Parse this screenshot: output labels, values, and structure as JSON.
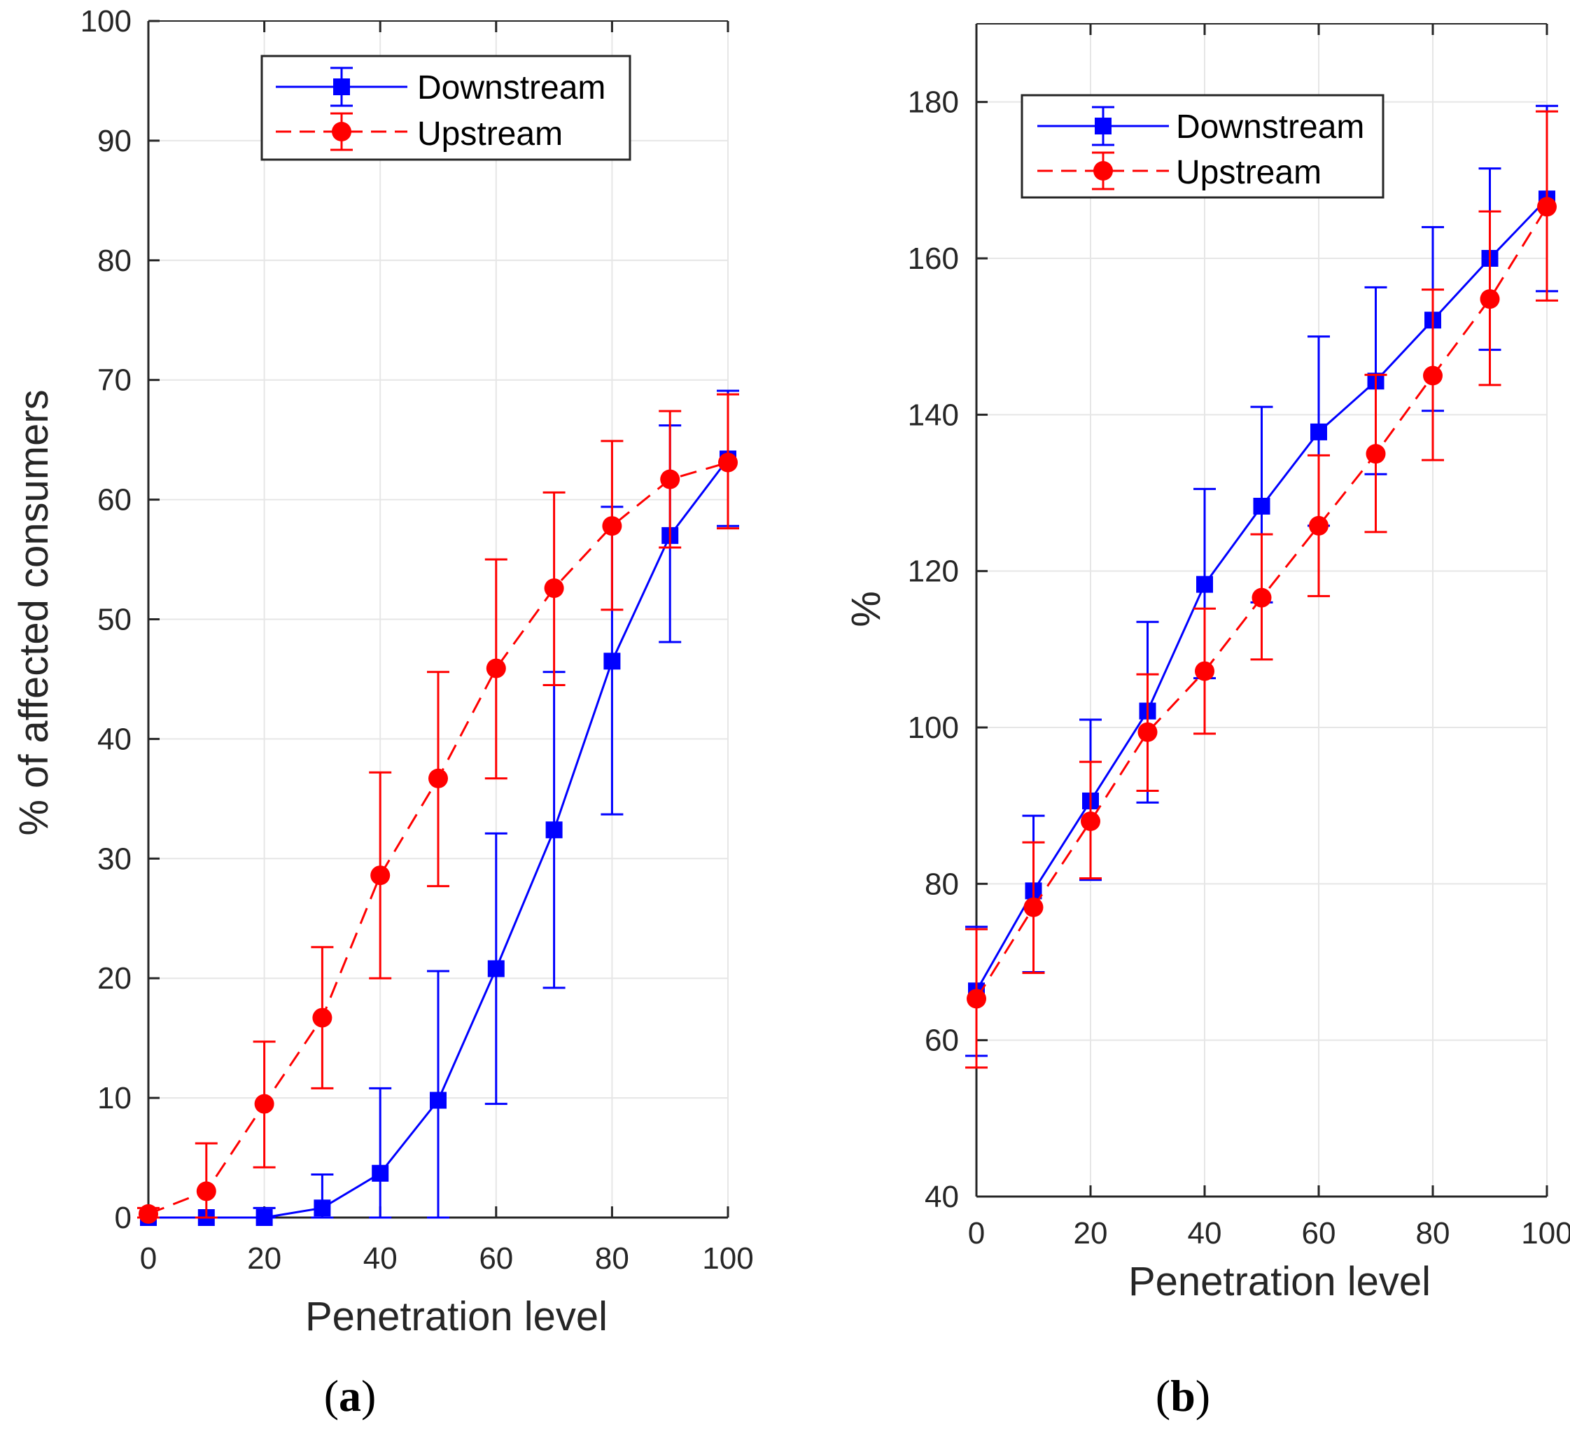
{
  "figure": {
    "panel_labels": {
      "a_open": "(",
      "a": "a",
      "a_close": ")",
      "b_open": "(",
      "b": "b",
      "b_close": ")"
    }
  },
  "colors": {
    "downstream": "#0000ff",
    "upstream": "#ff0000",
    "grid": "#e6e6e6",
    "axis": "#262626"
  },
  "chart_data": [
    {
      "type": "line",
      "panel": "a",
      "title": "",
      "xlabel": "Penetration level",
      "ylabel": "% of affected consumers",
      "xlim": [
        0,
        100
      ],
      "ylim": [
        0,
        100
      ],
      "xticks": [
        0,
        20,
        40,
        60,
        80,
        100
      ],
      "yticks": [
        0,
        10,
        20,
        30,
        40,
        50,
        60,
        70,
        80,
        90,
        100
      ],
      "grid": true,
      "legend_position": "top-left",
      "x": [
        0,
        10,
        20,
        30,
        40,
        50,
        60,
        70,
        80,
        90,
        100
      ],
      "series": [
        {
          "name": "Downstream",
          "style": "solid",
          "marker": "square",
          "values": [
            0,
            0,
            0,
            0.8,
            3.7,
            9.8,
            20.8,
            32.4,
            46.5,
            57.0,
            63.4
          ],
          "err_low": [
            0,
            0,
            0,
            0,
            0,
            0,
            9.5,
            19.2,
            33.7,
            48.1,
            57.8
          ],
          "err_high": [
            0,
            0,
            0.8,
            3.6,
            10.8,
            20.6,
            32.1,
            45.6,
            59.4,
            66.2,
            69.1
          ]
        },
        {
          "name": "Upstream",
          "style": "dashed",
          "marker": "circle",
          "values": [
            0.3,
            2.2,
            9.5,
            16.7,
            28.6,
            36.7,
            45.9,
            52.6,
            57.8,
            61.7,
            63.1
          ],
          "err_low": [
            0,
            0,
            4.2,
            10.8,
            20.0,
            27.7,
            36.7,
            44.5,
            50.8,
            56.0,
            57.6
          ],
          "err_high": [
            0.8,
            6.2,
            14.7,
            22.6,
            37.2,
            45.6,
            55.0,
            60.6,
            64.9,
            67.4,
            68.8
          ]
        }
      ]
    },
    {
      "type": "line",
      "panel": "b",
      "title": "",
      "xlabel": "Penetration level",
      "ylabel": "%",
      "xlim": [
        0,
        100
      ],
      "ylim": [
        40,
        190
      ],
      "xticks": [
        0,
        20,
        40,
        60,
        80,
        100
      ],
      "yticks": [
        40,
        60,
        80,
        100,
        120,
        140,
        160,
        180
      ],
      "grid": true,
      "legend_position": "top-left",
      "x": [
        0,
        10,
        20,
        30,
        40,
        50,
        60,
        70,
        80,
        90,
        100
      ],
      "series": [
        {
          "name": "Downstream",
          "style": "solid",
          "marker": "square",
          "values": [
            66.3,
            79.1,
            90.6,
            102.1,
            118.3,
            128.3,
            137.8,
            144.3,
            152.1,
            160.0,
            167.6
          ],
          "err_low": [
            58.0,
            68.7,
            80.5,
            90.4,
            106.3,
            116.0,
            125.8,
            132.4,
            140.5,
            148.3,
            155.8
          ],
          "err_high": [
            74.5,
            88.7,
            101.0,
            113.5,
            130.5,
            141.0,
            150.0,
            156.3,
            164.0,
            171.5,
            179.5
          ]
        },
        {
          "name": "Upstream",
          "style": "dashed",
          "marker": "circle",
          "values": [
            65.3,
            77.0,
            88.0,
            99.4,
            107.2,
            116.6,
            125.8,
            135.0,
            145.0,
            154.8,
            166.6
          ],
          "err_low": [
            56.5,
            68.6,
            80.7,
            91.9,
            99.2,
            108.7,
            116.8,
            125.0,
            134.2,
            143.8,
            154.6
          ],
          "err_high": [
            74.2,
            85.3,
            95.6,
            106.8,
            115.2,
            124.7,
            134.8,
            145.1,
            156.0,
            166.0,
            178.8
          ]
        }
      ]
    }
  ]
}
